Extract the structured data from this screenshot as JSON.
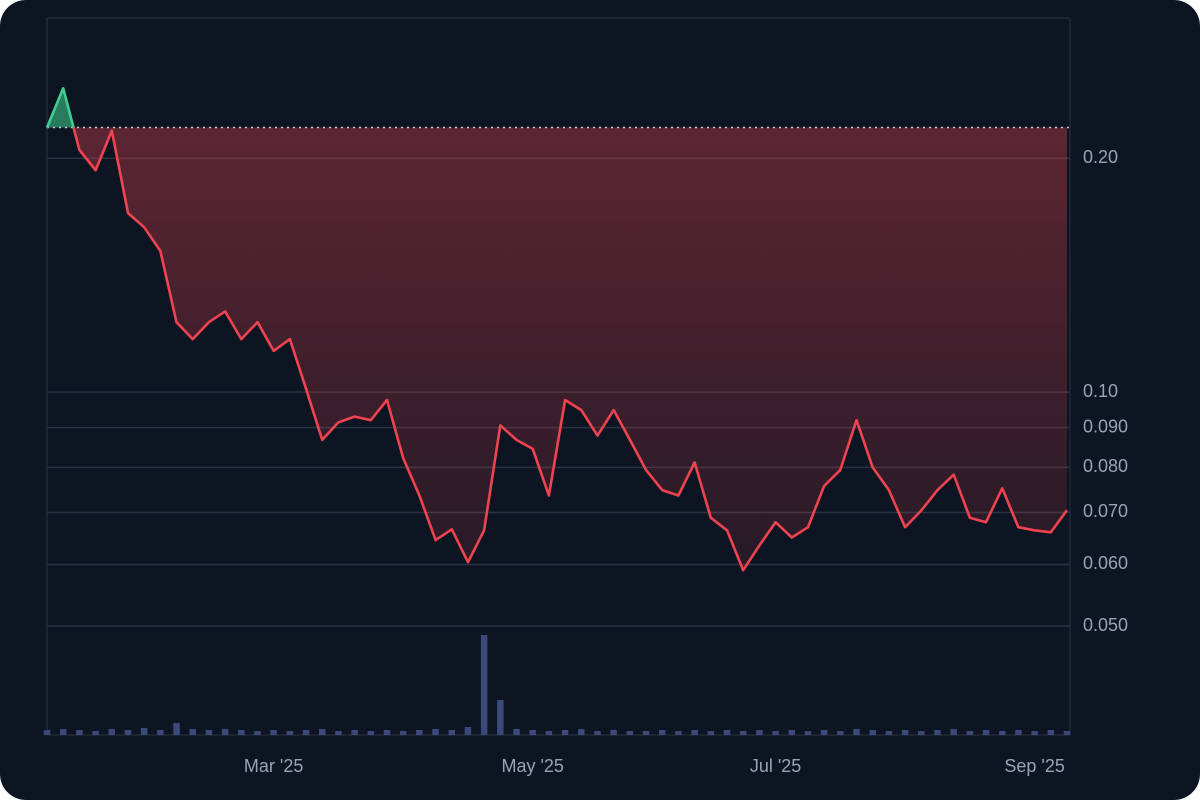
{
  "chart_data": {
    "type": "line",
    "log_scale": true,
    "grid": true,
    "categories": [
      null,
      null,
      null,
      null,
      null,
      null,
      null,
      null,
      null,
      null,
      null,
      null,
      null,
      null,
      "Mar '25",
      null,
      null,
      null,
      null,
      null,
      null,
      null,
      null,
      null,
      null,
      null,
      null,
      null,
      null,
      null,
      "May '25",
      null,
      null,
      null,
      null,
      null,
      null,
      null,
      null,
      null,
      null,
      null,
      null,
      null,
      null,
      "Jul '25",
      null,
      null,
      null,
      null,
      null,
      null,
      null,
      null,
      null,
      null,
      null,
      null,
      null,
      null,
      null,
      "Sep '25",
      null,
      null
    ],
    "values": [
      0.219,
      0.246,
      0.205,
      0.193,
      0.217,
      0.17,
      0.163,
      0.152,
      0.123,
      0.117,
      0.123,
      0.127,
      0.117,
      0.123,
      0.113,
      0.117,
      0.101,
      0.0868,
      0.0914,
      0.093,
      0.092,
      0.0977,
      0.0822,
      0.0736,
      0.0645,
      0.0666,
      0.0604,
      0.0664,
      0.0906,
      0.0868,
      0.0845,
      0.0736,
      0.0977,
      0.0948,
      0.0879,
      0.0948,
      0.0868,
      0.0794,
      0.0748,
      0.0736,
      0.0812,
      0.0689,
      0.0664,
      0.059,
      0.0635,
      0.068,
      0.065,
      0.067,
      0.0757,
      0.0794,
      0.092,
      0.08,
      0.0748,
      0.067,
      0.0704,
      0.0748,
      0.0783,
      0.0689,
      0.068,
      0.0752,
      0.067,
      0.0664,
      0.066,
      0.0705
    ],
    "volume": [
      5,
      6,
      5,
      4,
      6,
      5,
      7,
      5,
      12,
      6,
      5,
      6,
      5,
      4,
      5,
      4,
      5,
      6,
      4,
      5,
      4,
      5,
      4,
      5,
      6,
      5,
      8,
      100,
      35,
      6,
      5,
      4,
      5,
      6,
      4,
      5,
      4,
      4,
      5,
      4,
      5,
      4,
      5,
      4,
      5,
      4,
      5,
      4,
      5,
      4,
      6,
      5,
      4,
      5,
      4,
      5,
      6,
      4,
      5,
      4,
      5,
      4,
      5,
      4
    ],
    "baseline": 0.219,
    "up_color": "#3ecf8e",
    "down_color": "#ef4350",
    "volume_color": "#3b4a7a",
    "ylim": [
      0.0362,
      0.303
    ],
    "yticks": [
      {
        "value": 0.2,
        "label": "0.20"
      },
      {
        "value": 0.1,
        "label": "0.10"
      },
      {
        "value": 0.09,
        "label": "0.090"
      },
      {
        "value": 0.08,
        "label": "0.080"
      },
      {
        "value": 0.07,
        "label": "0.070"
      },
      {
        "value": 0.06,
        "label": "0.060"
      },
      {
        "value": 0.05,
        "label": "0.050"
      }
    ]
  }
}
